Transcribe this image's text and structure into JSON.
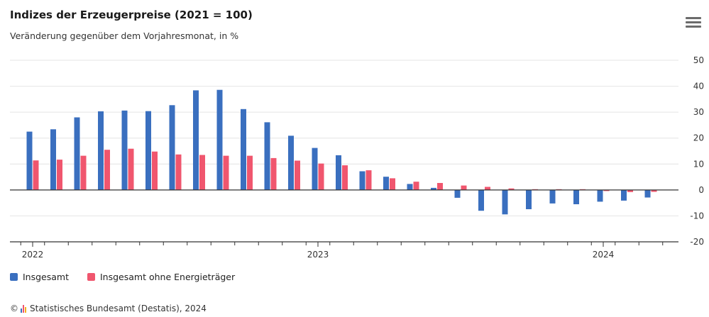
{
  "title": "Indizes der Erzeugerpreise (2021 = 100)",
  "subtitle": "Veränderung gegenüber dem Vorjahresmonat, in %",
  "menu_icon": "hamburger-menu-icon",
  "colors": {
    "series1": "#3a6fbf",
    "series2": "#f0566e",
    "grid": "#e4e4e4",
    "axis": "#333333"
  },
  "source": {
    "copyright": "©",
    "text": "Statistisches Bundesamt (Destatis), 2024"
  },
  "chart_data": {
    "type": "bar",
    "title": "Indizes der Erzeugerpreise (2021 = 100)",
    "subtitle": "Veränderung gegenüber dem Vorjahresmonat, in %",
    "categories": [
      "2022-01",
      "2022-02",
      "2022-03",
      "2022-04",
      "2022-05",
      "2022-06",
      "2022-07",
      "2022-08",
      "2022-09",
      "2022-10",
      "2022-11",
      "2022-12",
      "2023-01",
      "2023-02",
      "2023-03",
      "2023-04",
      "2023-05",
      "2023-06",
      "2023-07",
      "2023-08",
      "2023-09",
      "2023-10",
      "2023-11",
      "2023-12",
      "2024-01",
      "2024-02",
      "2024-03"
    ],
    "x_tick_labels": [
      {
        "category": "2022-01",
        "label": "2022"
      },
      {
        "category": "2023-01",
        "label": "2023"
      },
      {
        "category": "2024-01",
        "label": "2024"
      }
    ],
    "series": [
      {
        "name": "Insgesamt",
        "values": [
          22.5,
          23.4,
          28.0,
          30.3,
          30.6,
          30.4,
          32.7,
          38.4,
          38.6,
          31.2,
          26.1,
          20.9,
          16.2,
          13.4,
          7.2,
          5.1,
          2.3,
          0.8,
          -3.0,
          -8.0,
          -9.4,
          -7.4,
          -5.2,
          -5.5,
          -4.5,
          -4.1,
          -2.9
        ]
      },
      {
        "name": "Insgesamt ohne Energieträger",
        "values": [
          11.4,
          11.7,
          13.2,
          15.5,
          15.9,
          14.8,
          13.7,
          13.5,
          13.2,
          13.2,
          12.3,
          11.3,
          10.2,
          9.5,
          7.6,
          4.5,
          3.2,
          2.7,
          1.7,
          1.2,
          0.6,
          0.3,
          0.3,
          0.3,
          -0.4,
          -0.8,
          -0.7
        ]
      }
    ],
    "ylim": [
      -20,
      50
    ],
    "yticks": [
      50,
      40,
      30,
      20,
      10,
      0,
      -10,
      -20
    ],
    "grid": true,
    "legend_position": "bottom-left"
  }
}
